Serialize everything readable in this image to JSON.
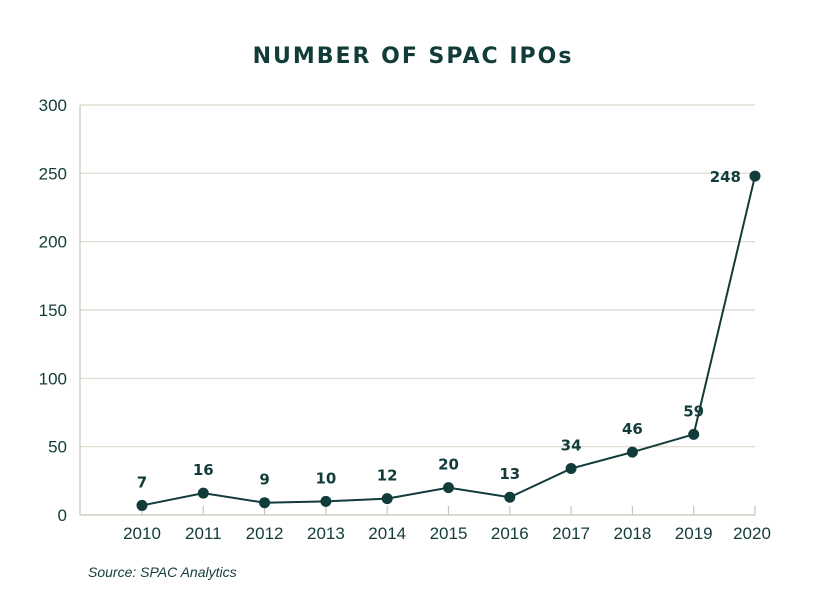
{
  "chart_data": {
    "type": "line",
    "title": "NUMBER OF SPAC IPOs",
    "xlabel": "",
    "ylabel": "",
    "categories": [
      "2010",
      "2011",
      "2012",
      "2013",
      "2014",
      "2015",
      "2016",
      "2017",
      "2018",
      "2019",
      "2020"
    ],
    "series": [
      {
        "name": "SPAC IPOs",
        "values": [
          7,
          16,
          9,
          10,
          12,
          20,
          13,
          34,
          46,
          59,
          248
        ]
      }
    ],
    "data_labels": [
      "7",
      "16",
      "9",
      "10",
      "12",
      "20",
      "13",
      "34",
      "46",
      "59",
      "248"
    ],
    "ylim": [
      0,
      300
    ],
    "yticks": [
      0,
      50,
      100,
      150,
      200,
      250,
      300
    ],
    "ytick_labels": [
      "0",
      "50",
      "100",
      "150",
      "200",
      "250",
      "300"
    ],
    "grid": true,
    "legend": "none",
    "colors": {
      "line": "#123c3a",
      "grid": "#ddd8cc",
      "axis": "#c9c4b8"
    },
    "source": "Source:  SPAC Analytics"
  }
}
